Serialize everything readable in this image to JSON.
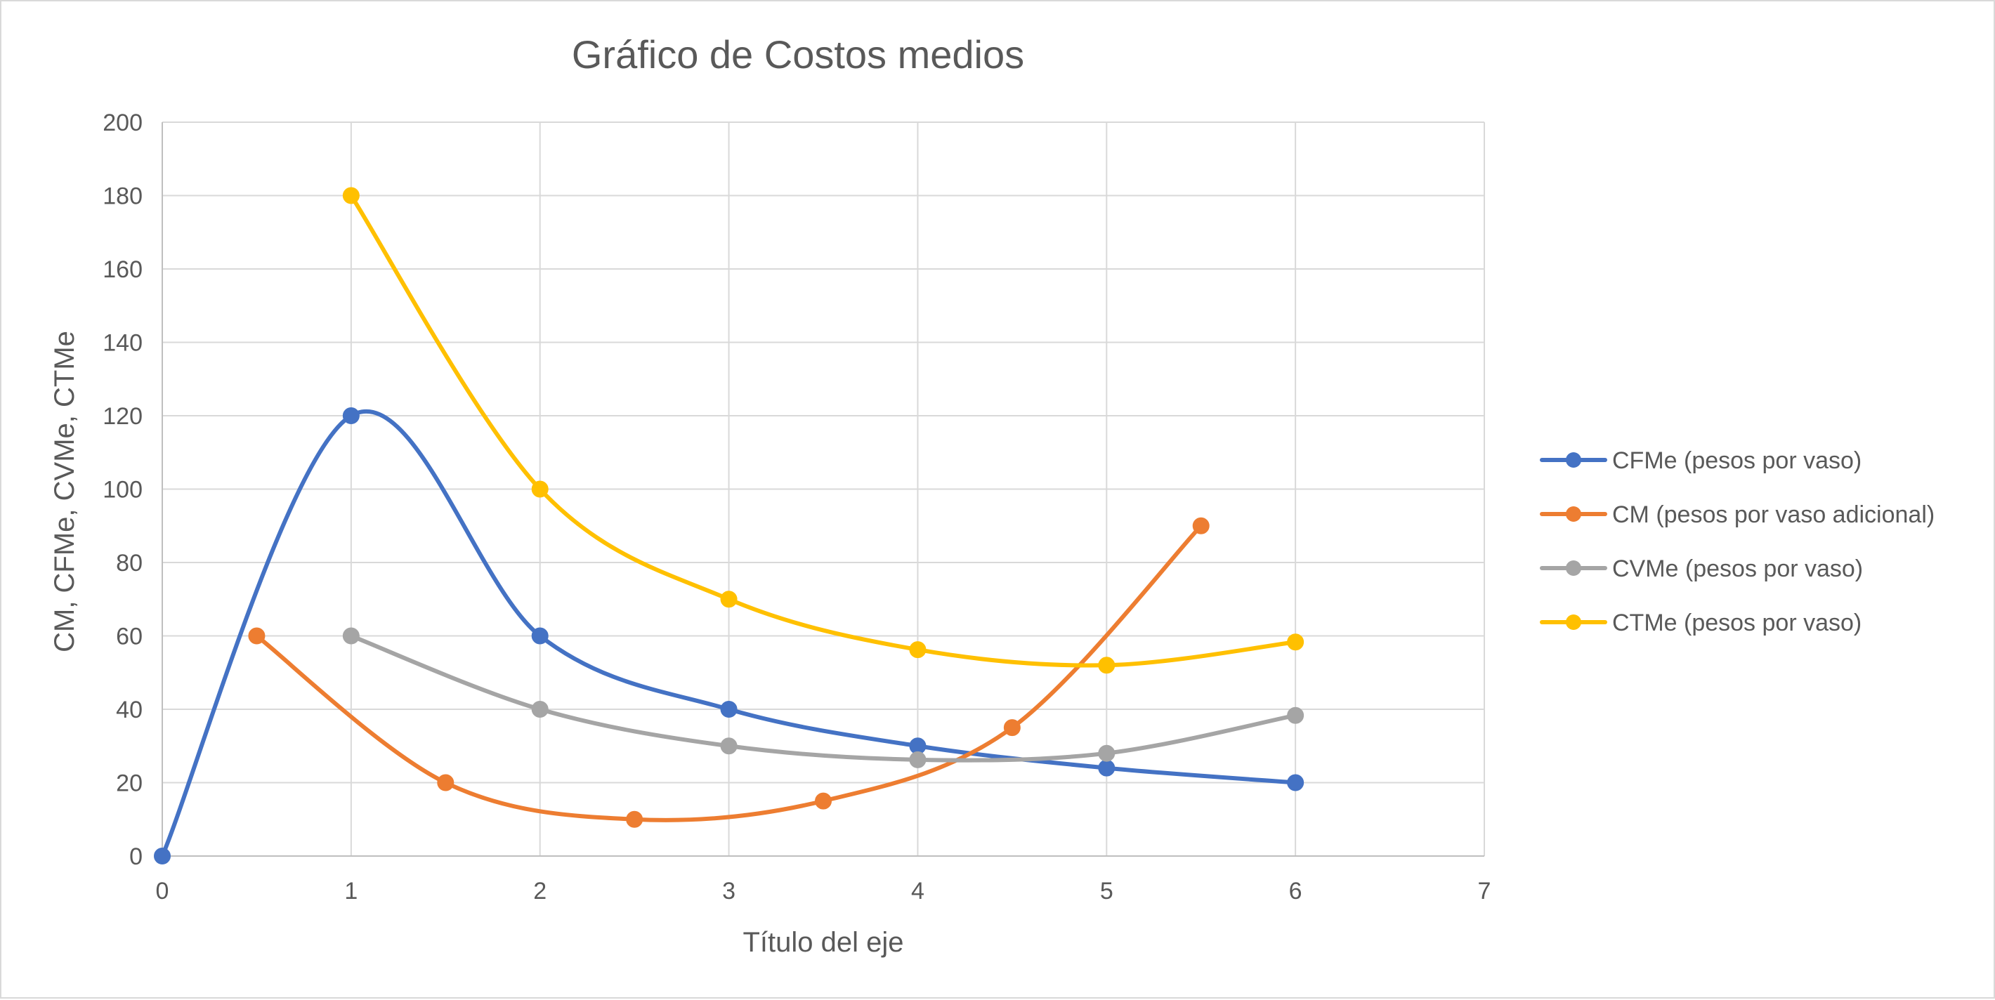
{
  "chart_data": {
    "type": "scatter",
    "title": "Gráfico de Costos medios",
    "xlabel": "Título del eje",
    "ylabel": "CM, CFMe, CVMe, CTMe",
    "xlim": [
      0,
      7
    ],
    "ylim": [
      0,
      200
    ],
    "xticks": [
      0,
      1,
      2,
      3,
      4,
      5,
      6,
      7
    ],
    "yticks": [
      0,
      20,
      40,
      60,
      80,
      100,
      120,
      140,
      160,
      180,
      200
    ],
    "grid": true,
    "smoothed_lines": true,
    "markers": true,
    "legend_position": "right",
    "series": [
      {
        "name": "CFMe (pesos por vaso)",
        "color": "#4472c4",
        "x": [
          0,
          1,
          2,
          3,
          4,
          5,
          6
        ],
        "y": [
          0,
          120,
          60,
          40,
          30,
          24,
          20
        ]
      },
      {
        "name": "CM (pesos por vaso adicional)",
        "color": "#ed7d31",
        "x": [
          0.5,
          1.5,
          2.5,
          3.5,
          4.5,
          5.5
        ],
        "y": [
          60,
          20,
          10,
          15,
          35,
          90
        ]
      },
      {
        "name": "CVMe (pesos por vaso)",
        "color": "#a5a5a5",
        "x": [
          1,
          2,
          3,
          4,
          5,
          6
        ],
        "y": [
          60,
          40,
          30,
          26.25,
          28,
          38.33
        ]
      },
      {
        "name": "CTMe (pesos por vaso)",
        "color": "#ffc000",
        "x": [
          1,
          2,
          3,
          4,
          5,
          6
        ],
        "y": [
          180,
          100,
          70,
          56.25,
          52,
          58.33
        ]
      }
    ]
  }
}
